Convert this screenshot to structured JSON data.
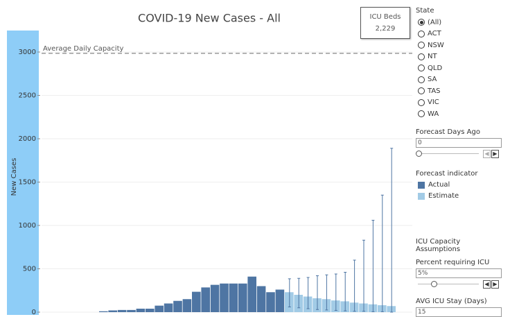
{
  "chart_data": {
    "type": "bar",
    "title": "COVID-19 New Cases - All",
    "y_label": "New Cases",
    "categories": [
      null,
      null,
      null,
      null,
      null,
      null,
      null,
      null,
      null,
      null,
      null,
      null,
      null,
      null,
      null,
      null,
      null,
      null,
      null,
      null,
      null,
      null,
      null,
      null,
      null,
      null,
      null,
      null,
      null,
      null,
      null,
      null
    ],
    "series": [
      {
        "name": "Actual",
        "color": "#4e75a3",
        "values": [
          10,
          20,
          25,
          25,
          40,
          40,
          75,
          100,
          130,
          150,
          235,
          285,
          315,
          330,
          330,
          330,
          410,
          300,
          230,
          260,
          null,
          null,
          null,
          null,
          null,
          null,
          null,
          null,
          null,
          null,
          null,
          null
        ]
      },
      {
        "name": "Estimate",
        "color": "#a2cbe6",
        "values": [
          null,
          null,
          null,
          null,
          null,
          null,
          null,
          null,
          null,
          null,
          null,
          null,
          null,
          null,
          null,
          null,
          null,
          null,
          null,
          null,
          230,
          200,
          180,
          160,
          150,
          135,
          125,
          110,
          100,
          90,
          80,
          70
        ],
        "error_low": [
          null,
          null,
          null,
          null,
          null,
          null,
          null,
          null,
          null,
          null,
          null,
          null,
          null,
          null,
          null,
          null,
          null,
          null,
          null,
          null,
          60,
          50,
          40,
          30,
          25,
          20,
          15,
          10,
          10,
          5,
          5,
          0
        ],
        "error_high": [
          null,
          null,
          null,
          null,
          null,
          null,
          null,
          null,
          null,
          null,
          null,
          null,
          null,
          null,
          null,
          null,
          null,
          null,
          null,
          null,
          385,
          390,
          400,
          420,
          430,
          440,
          460,
          600,
          830,
          1060,
          1350,
          1890
        ]
      }
    ],
    "reference_line": {
      "label": "Average Daily Capacity",
      "value": 2985
    },
    "ylim": [
      0,
      3200
    ],
    "yticks": [
      0,
      500,
      1000,
      1500,
      2000,
      2500,
      3000
    ],
    "grid": true,
    "legend_title": "Forecast indicator"
  },
  "kpi": {
    "label": "ICU Beds",
    "value": "2,229"
  },
  "state_filter": {
    "title": "State",
    "options": [
      "(All)",
      "ACT",
      "NSW",
      "NT",
      "QLD",
      "SA",
      "TAS",
      "VIC",
      "WA"
    ]
  },
  "forecast_days_ago": {
    "title": "Forecast Days Ago",
    "value": "0"
  },
  "assumptions": {
    "title": "ICU Capacity Assumptions",
    "percent_icu": {
      "title": "Percent requiring ICU",
      "value": "5%"
    },
    "avg_stay": {
      "title": "AVG ICU Stay (Days)",
      "value": "15"
    }
  }
}
